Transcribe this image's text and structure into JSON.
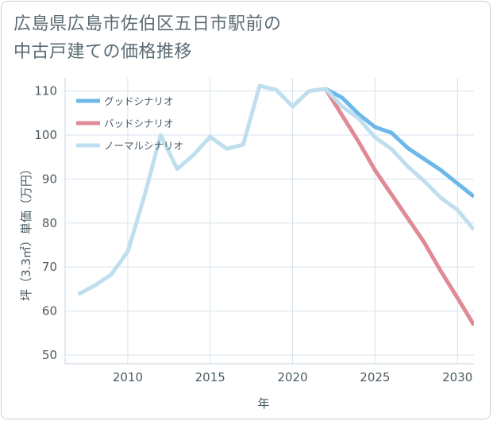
{
  "title_line1": "広島県広島市佐伯区五日市駅前の",
  "title_line2": "中古戸建ての価格推移",
  "chart_data": {
    "type": "line",
    "xlabel": "年",
    "ylabel": "坪（3.3㎡）単価（万円）",
    "xlim": [
      2006.2,
      2031
    ],
    "ylim": [
      48,
      113
    ],
    "xticks": [
      2010,
      2015,
      2020,
      2025,
      2030
    ],
    "yticks": [
      50,
      60,
      70,
      80,
      90,
      100,
      110
    ],
    "grid": true,
    "legend_position": "top-left",
    "series": [
      {
        "name": "グッドシナリオ",
        "color": "#6cb8ea",
        "points": [
          [
            2022,
            110.5
          ],
          [
            2023,
            108.5
          ],
          [
            2024,
            104.8
          ],
          [
            2025,
            101.8
          ],
          [
            2026,
            100.5
          ],
          [
            2027,
            97
          ],
          [
            2028,
            94.5
          ],
          [
            2029,
            92
          ],
          [
            2030,
            89
          ],
          [
            2031,
            86
          ]
        ]
      },
      {
        "name": "バッドシナリオ",
        "color": "#e08a93",
        "points": [
          [
            2022,
            110.5
          ],
          [
            2023,
            104.5
          ],
          [
            2024,
            98.5
          ],
          [
            2025,
            92
          ],
          [
            2026,
            86.5
          ],
          [
            2027,
            81
          ],
          [
            2028,
            75.5
          ],
          [
            2029,
            69
          ],
          [
            2030,
            63
          ],
          [
            2031,
            56.8
          ]
        ]
      },
      {
        "name": "ノーマルシナリオ",
        "color": "#bfdfee",
        "points": [
          [
            2007,
            63.8
          ],
          [
            2008,
            65.8
          ],
          [
            2009,
            68.3
          ],
          [
            2010,
            73.5
          ],
          [
            2011,
            86
          ],
          [
            2012,
            100
          ],
          [
            2013,
            92.3
          ],
          [
            2014,
            95.5
          ],
          [
            2015,
            99.6
          ],
          [
            2016,
            96.9
          ],
          [
            2017,
            97.8
          ],
          [
            2018,
            111.2
          ],
          [
            2019,
            110.3
          ],
          [
            2020,
            106.5
          ],
          [
            2021,
            110
          ],
          [
            2022,
            110.5
          ],
          [
            2023,
            106.5
          ],
          [
            2024,
            103.8
          ],
          [
            2025,
            99.5
          ],
          [
            2026,
            96.8
          ],
          [
            2027,
            92.8
          ],
          [
            2028,
            89.5
          ],
          [
            2029,
            85.7
          ],
          [
            2030,
            83
          ],
          [
            2031,
            78.5
          ]
        ]
      }
    ]
  }
}
